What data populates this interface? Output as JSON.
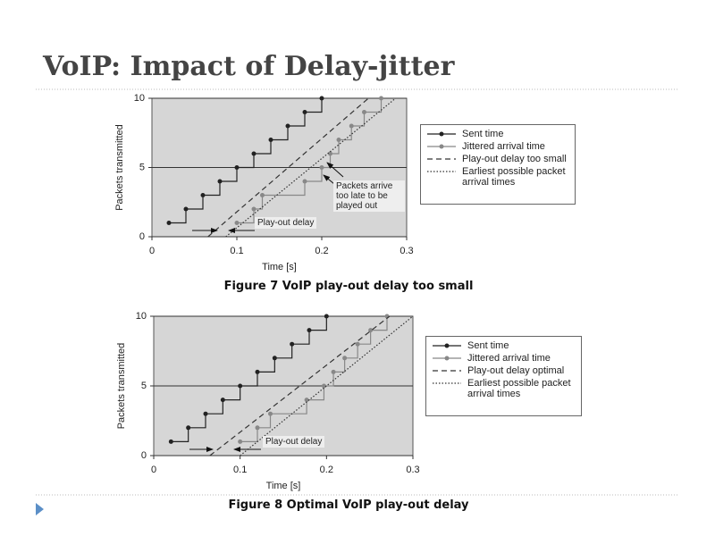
{
  "title": "VoIP: Impact of Delay-jitter",
  "chart_data": [
    {
      "type": "line",
      "caption": "Figure 7 VoIP play-out delay too small",
      "xlabel": "Time [s]",
      "ylabel": "Packets transmitted",
      "xlim": [
        0,
        0.3
      ],
      "ylim": [
        0,
        10
      ],
      "xticks": [
        0,
        0.1,
        0.2,
        0.3
      ],
      "yticks": [
        0,
        5,
        10
      ],
      "grid": true,
      "series": [
        {
          "name": "Sent time",
          "color": "#222222",
          "line_style": "solid",
          "marker": true,
          "drawstyle": "steps-post",
          "x": [
            0.02,
            0.04,
            0.06,
            0.08,
            0.1,
            0.12,
            0.14,
            0.16,
            0.18,
            0.2
          ],
          "values": [
            1,
            2,
            3,
            4,
            5,
            6,
            7,
            8,
            9,
            10
          ]
        },
        {
          "name": "Jittered arrival time",
          "color": "#888888",
          "line_style": "solid",
          "marker": true,
          "drawstyle": "steps-post",
          "x": [
            0.1,
            0.12,
            0.13,
            0.18,
            0.2,
            0.21,
            0.22,
            0.235,
            0.25,
            0.27
          ],
          "values": [
            1,
            2,
            3,
            4,
            5,
            6,
            7,
            8,
            9,
            10
          ]
        },
        {
          "name": "Play-out delay too small",
          "color": "#333333",
          "line_style": "dashed",
          "marker": false,
          "x": [
            0.066,
            0.255
          ],
          "values": [
            0,
            10
          ]
        },
        {
          "name": "Earliest possible packet arrival times",
          "color": "#333333",
          "line_style": "dotted",
          "marker": false,
          "x": [
            0.087,
            0.287
          ],
          "values": [
            0,
            10
          ]
        }
      ],
      "annotations": [
        "Play-out delay",
        "Packets arrive too late to be played out"
      ]
    },
    {
      "type": "line",
      "caption": "Figure 8 Optimal VoIP play-out delay",
      "xlabel": "Time [s]",
      "ylabel": "Packets transmitted",
      "xlim": [
        0,
        0.3
      ],
      "ylim": [
        0,
        10
      ],
      "xticks": [
        0,
        0.1,
        0.2,
        0.3
      ],
      "yticks": [
        0,
        5,
        10
      ],
      "grid": true,
      "series": [
        {
          "name": "Sent time",
          "color": "#222222",
          "line_style": "solid",
          "marker": true,
          "drawstyle": "steps-post",
          "x": [
            0.02,
            0.04,
            0.06,
            0.08,
            0.1,
            0.12,
            0.14,
            0.16,
            0.18,
            0.2
          ],
          "values": [
            1,
            2,
            3,
            4,
            5,
            6,
            7,
            8,
            9,
            10
          ]
        },
        {
          "name": "Jittered arrival time",
          "color": "#888888",
          "line_style": "solid",
          "marker": true,
          "drawstyle": "steps-post",
          "x": [
            0.1,
            0.12,
            0.135,
            0.177,
            0.197,
            0.208,
            0.221,
            0.236,
            0.251,
            0.27
          ],
          "values": [
            1,
            2,
            3,
            4,
            5,
            6,
            7,
            8,
            9,
            10
          ]
        },
        {
          "name": "Play-out delay optimal",
          "color": "#333333",
          "line_style": "dashed",
          "marker": false,
          "x": [
            0.065,
            0.273
          ],
          "values": [
            0,
            10
          ]
        },
        {
          "name": "Earliest possible packet arrival times",
          "color": "#333333",
          "line_style": "dotted",
          "marker": false,
          "x": [
            0.1,
            0.3
          ],
          "values": [
            0,
            10
          ]
        }
      ],
      "annotations": [
        "Play-out delay"
      ]
    }
  ]
}
